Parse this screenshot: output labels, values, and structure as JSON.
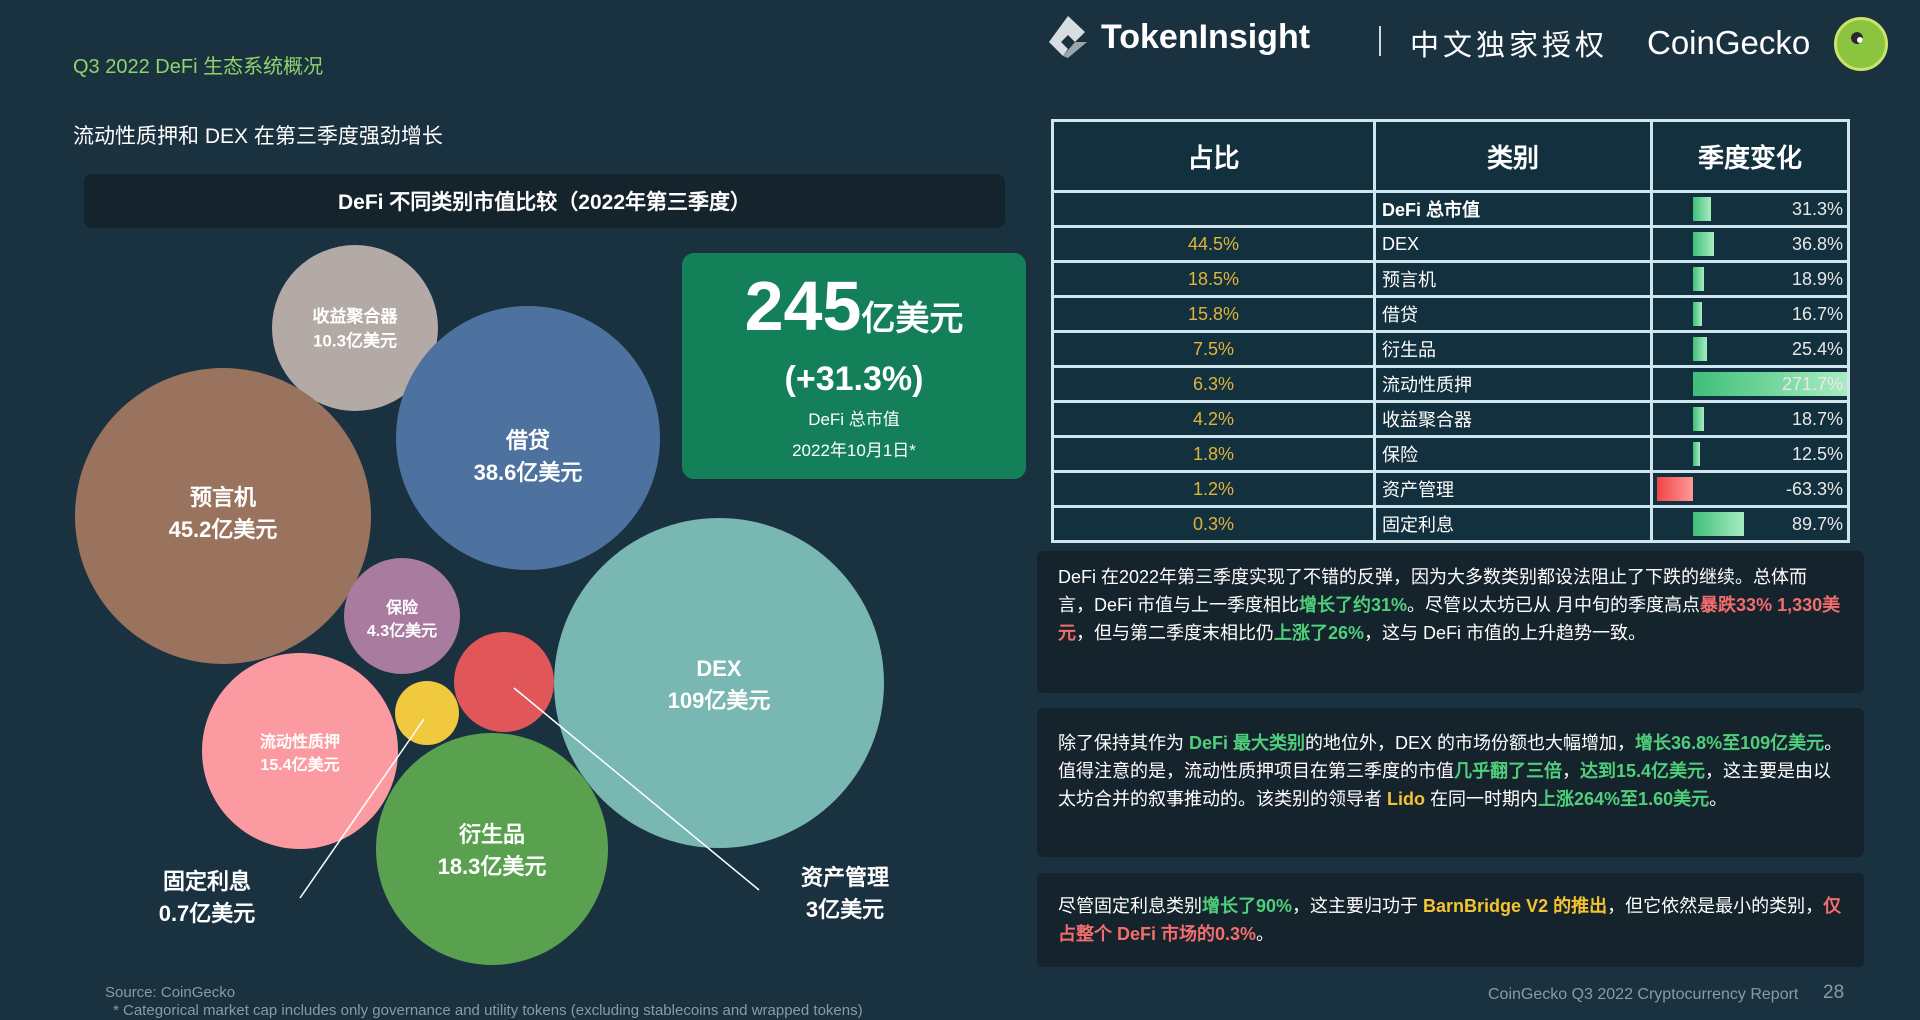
{
  "header": {
    "section": "Q3 2022 DeFi 生态系统概况",
    "subtitle": "流动性质押和 DEX 在第三季度强劲增长",
    "tokeninsight": "TokenInsight",
    "license": "中文独家授权",
    "coingecko": "CoinGecko"
  },
  "chart_title": "DeFi 不同类别市值比较（2022年第三季度）",
  "total": {
    "value": "245",
    "unit": "亿美元",
    "change": "(+31.3%)",
    "label": "DeFi 总市值",
    "date": "2022年10月1日*"
  },
  "chart_data": {
    "type": "bubble",
    "title": "DeFi 不同类别市值比较（2022年第三季度）",
    "unit": "亿美元",
    "bubbles": [
      {
        "name": "收益聚合器",
        "value": 10.3,
        "label": "10.3亿美元",
        "color": "#b3aaa6"
      },
      {
        "name": "借贷",
        "value": 38.6,
        "label": "38.6亿美元",
        "color": "#4e72a0"
      },
      {
        "name": "预言机",
        "value": 45.2,
        "label": "45.2亿美元",
        "color": "#9a735f"
      },
      {
        "name": "保险",
        "value": 4.3,
        "label": "4.3亿美元",
        "color": "#a87b9f"
      },
      {
        "name": "DEX",
        "value": 109,
        "label": "109亿美元",
        "color": "#78b7b2"
      },
      {
        "name": "资产管理",
        "value": 3,
        "label": "3亿美元",
        "color": "#e15759"
      },
      {
        "name": "固定利息",
        "value": 0.7,
        "label": "0.7亿美元",
        "color": "#f1c93f"
      },
      {
        "name": "流动性质押",
        "value": 15.4,
        "label": "15.4亿美元",
        "color": "#fc9aa1"
      },
      {
        "name": "衍生品",
        "value": 18.3,
        "label": "18.3亿美元",
        "color": "#59a14f"
      }
    ]
  },
  "table": {
    "headers": [
      "占比",
      "类别",
      "季度变化"
    ],
    "rows": [
      {
        "share": "",
        "category": "DeFi 总市值",
        "change": 31.3,
        "change_label": "31.3%"
      },
      {
        "share": "44.5%",
        "category": "DEX",
        "change": 36.8,
        "change_label": "36.8%"
      },
      {
        "share": "18.5%",
        "category": "预言机",
        "change": 18.9,
        "change_label": "18.9%"
      },
      {
        "share": "15.8%",
        "category": "借贷",
        "change": 16.7,
        "change_label": "16.7%"
      },
      {
        "share": "7.5%",
        "category": "衍生品",
        "change": 25.4,
        "change_label": "25.4%"
      },
      {
        "share": "6.3%",
        "category": "流动性质押",
        "change": 271.7,
        "change_label": "271.7%"
      },
      {
        "share": "4.2%",
        "category": "收益聚合器",
        "change": 18.7,
        "change_label": "18.7%"
      },
      {
        "share": "1.8%",
        "category": "保险",
        "change": 12.5,
        "change_label": "12.5%"
      },
      {
        "share": "1.2%",
        "category": "资产管理",
        "change": -63.3,
        "change_label": "-63.3%"
      },
      {
        "share": "0.3%",
        "category": "固定利息",
        "change": 89.7,
        "change_label": "89.7%"
      }
    ]
  },
  "paragraphs": [
    [
      {
        "t": "DeFi 在2022年第三季度实现了不错的反弹，因为大多数类别都设法阻止了下跌的继续。总体而言，DeFi 市值与上一季度相比",
        "c": ""
      },
      {
        "t": "增长了约31%",
        "c": "g"
      },
      {
        "t": "。尽管以太坊已从 月中旬的季度高点",
        "c": ""
      },
      {
        "t": "暴跌33% 1,330美元",
        "c": "r"
      },
      {
        "t": "，但与第二季度末相比仍",
        "c": ""
      },
      {
        "t": "上涨了26%",
        "c": "g"
      },
      {
        "t": "，这与 DeFi 市值的上升趋势一致。",
        "c": ""
      }
    ],
    [
      {
        "t": "除了保持其作为 ",
        "c": ""
      },
      {
        "t": "DeFi 最大类别",
        "c": "g"
      },
      {
        "t": "的地位外，DEX 的市场份额也大幅增加，",
        "c": ""
      },
      {
        "t": "增长36.8%至109亿美元",
        "c": "g"
      },
      {
        "t": "。值得注意的是，流动性质押项目在第三季度的市值",
        "c": ""
      },
      {
        "t": "几乎翻了三倍",
        "c": "g"
      },
      {
        "t": "，",
        "c": ""
      },
      {
        "t": "达到15.4亿美元",
        "c": "g"
      },
      {
        "t": "，这主要是由以太坊合并的叙事推动的。该类别的领导者 ",
        "c": ""
      },
      {
        "t": "Lido",
        "c": "y"
      },
      {
        "t": " 在同一时期内",
        "c": ""
      },
      {
        "t": "上涨264%至1.60美元",
        "c": "g"
      },
      {
        "t": "。",
        "c": ""
      }
    ],
    [
      {
        "t": "尽管固定利息类别",
        "c": ""
      },
      {
        "t": "增长了90%",
        "c": "g"
      },
      {
        "t": "，这主要归功于 ",
        "c": ""
      },
      {
        "t": "BarnBridge V2 的推出",
        "c": "y"
      },
      {
        "t": "，但它依然是最小的类别，",
        "c": ""
      },
      {
        "t": "仅占整个 DeFi 市场的0.3%",
        "c": "r"
      },
      {
        "t": "。",
        "c": ""
      }
    ]
  ],
  "footer": {
    "source": "Source: CoinGecko",
    "footnote": "* Categorical market cap includes only governance and utility tokens (excluding stablecoins and wrapped tokens)",
    "report": "CoinGecko Q3 2022 Cryptocurrency Report",
    "page": "28"
  }
}
